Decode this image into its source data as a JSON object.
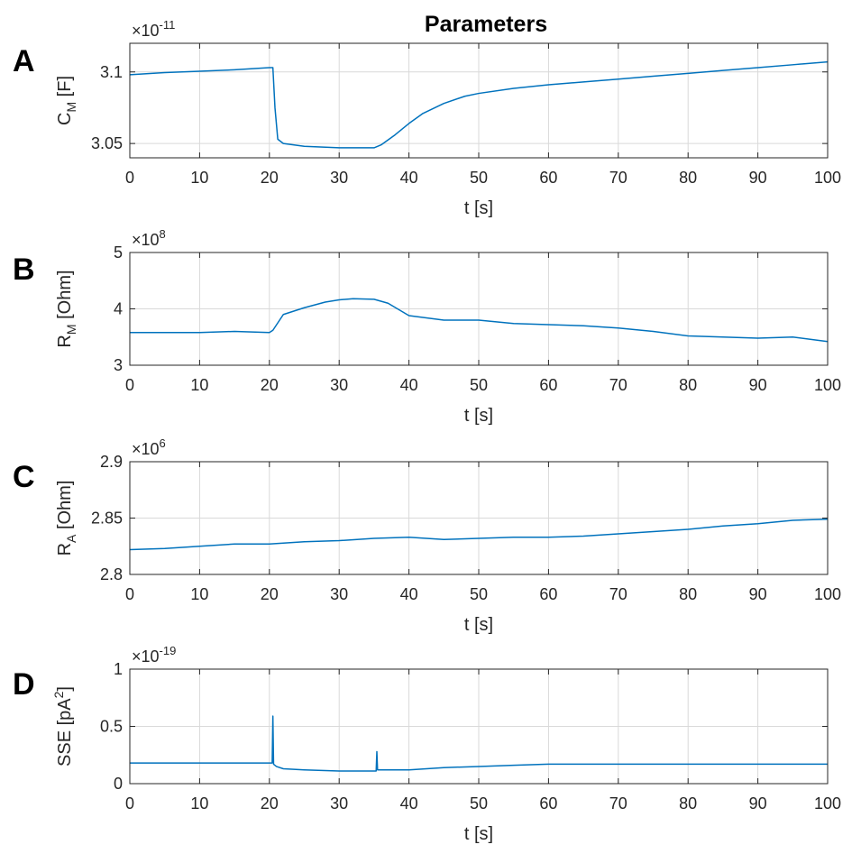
{
  "figure": {
    "title": "Parameters"
  },
  "colors": {
    "series": "#0072BD",
    "grid": "#d9d9d9",
    "axis": "#262626"
  },
  "chart_data": [
    {
      "panel": "A",
      "type": "line",
      "xlabel": "t [s]",
      "ylabel": "C",
      "ylabel_sub": "M",
      "ylabel_unit": " [F]",
      "exponent_base": "×10",
      "exponent": "-11",
      "xlim": [
        0,
        100
      ],
      "ylim": [
        3.04,
        3.12
      ],
      "xticks": [
        0,
        10,
        20,
        30,
        40,
        50,
        60,
        70,
        80,
        90,
        100
      ],
      "xtick_labels": [
        "0",
        "10",
        "20",
        "30",
        "40",
        "50",
        "60",
        "70",
        "80",
        "90",
        "100"
      ],
      "yticks": [
        3.05,
        3.1
      ],
      "ytick_labels": [
        "3.05",
        "3.1"
      ],
      "grid": true,
      "series": [
        {
          "x": [
            0,
            5,
            10,
            15,
            20,
            20.5,
            20.8,
            21.2,
            22,
            25,
            30,
            33,
            35,
            36,
            38,
            40,
            42,
            45,
            48,
            50,
            55,
            60,
            65,
            70,
            75,
            80,
            85,
            90,
            95,
            100
          ],
          "y": [
            3.098,
            3.0995,
            3.1005,
            3.1015,
            3.103,
            3.103,
            3.075,
            3.053,
            3.05,
            3.048,
            3.047,
            3.047,
            3.047,
            3.049,
            3.056,
            3.064,
            3.071,
            3.078,
            3.083,
            3.085,
            3.0885,
            3.091,
            3.093,
            3.095,
            3.097,
            3.099,
            3.101,
            3.103,
            3.105,
            3.107
          ]
        }
      ]
    },
    {
      "panel": "B",
      "type": "line",
      "xlabel": "t [s]",
      "ylabel": "R",
      "ylabel_sub": "M",
      "ylabel_unit": " [Ohm]",
      "exponent_base": "×10",
      "exponent": "8",
      "xlim": [
        0,
        100
      ],
      "ylim": [
        3,
        5
      ],
      "xticks": [
        0,
        10,
        20,
        30,
        40,
        50,
        60,
        70,
        80,
        90,
        100
      ],
      "xtick_labels": [
        "0",
        "10",
        "20",
        "30",
        "40",
        "50",
        "60",
        "70",
        "80",
        "90",
        "100"
      ],
      "yticks": [
        3,
        4,
        5
      ],
      "ytick_labels": [
        "3",
        "4",
        "5"
      ],
      "grid": true,
      "series": [
        {
          "x": [
            0,
            5,
            10,
            15,
            20,
            20.5,
            22,
            25,
            28,
            30,
            32,
            35,
            37,
            40,
            45,
            50,
            55,
            60,
            65,
            70,
            75,
            80,
            85,
            90,
            95,
            100
          ],
          "y": [
            3.58,
            3.58,
            3.58,
            3.6,
            3.58,
            3.62,
            3.9,
            4.02,
            4.12,
            4.16,
            4.18,
            4.17,
            4.1,
            3.88,
            3.8,
            3.8,
            3.74,
            3.72,
            3.7,
            3.66,
            3.6,
            3.52,
            3.5,
            3.48,
            3.5,
            3.42
          ]
        }
      ]
    },
    {
      "panel": "C",
      "type": "line",
      "xlabel": "t [s]",
      "ylabel": "R",
      "ylabel_sub": "A",
      "ylabel_unit": " [Ohm]",
      "exponent_base": "×10",
      "exponent": "6",
      "xlim": [
        0,
        100
      ],
      "ylim": [
        2.8,
        2.9
      ],
      "xticks": [
        0,
        10,
        20,
        30,
        40,
        50,
        60,
        70,
        80,
        90,
        100
      ],
      "xtick_labels": [
        "0",
        "10",
        "20",
        "30",
        "40",
        "50",
        "60",
        "70",
        "80",
        "90",
        "100"
      ],
      "yticks": [
        2.8,
        2.85,
        2.9
      ],
      "ytick_labels": [
        "2.8",
        "2.85",
        "2.9"
      ],
      "grid": true,
      "series": [
        {
          "x": [
            0,
            5,
            10,
            15,
            20,
            25,
            30,
            35,
            40,
            45,
            50,
            55,
            60,
            65,
            70,
            75,
            80,
            85,
            90,
            95,
            100
          ],
          "y": [
            2.822,
            2.823,
            2.825,
            2.827,
            2.827,
            2.829,
            2.83,
            2.832,
            2.833,
            2.831,
            2.832,
            2.833,
            2.833,
            2.834,
            2.836,
            2.838,
            2.84,
            2.843,
            2.845,
            2.848,
            2.849
          ]
        }
      ]
    },
    {
      "panel": "D",
      "type": "line",
      "xlabel": "t [s]",
      "ylabel": "SSE [pA",
      "ylabel_sup": "2",
      "ylabel_unit": "]",
      "exponent_base": "×10",
      "exponent": "-19",
      "xlim": [
        0,
        100
      ],
      "ylim": [
        0,
        1
      ],
      "xticks": [
        0,
        10,
        20,
        30,
        40,
        50,
        60,
        70,
        80,
        90,
        100
      ],
      "xtick_labels": [
        "0",
        "10",
        "20",
        "30",
        "40",
        "50",
        "60",
        "70",
        "80",
        "90",
        "100"
      ],
      "yticks": [
        0,
        0.5,
        1
      ],
      "ytick_labels": [
        "0",
        "0.5",
        "1"
      ],
      "grid": true,
      "series": [
        {
          "x": [
            0,
            5,
            10,
            15,
            20,
            20.4,
            20.5,
            20.6,
            21,
            22,
            25,
            30,
            33,
            35,
            35.3,
            35.4,
            35.5,
            36,
            40,
            45,
            50,
            55,
            60,
            70,
            80,
            90,
            100
          ],
          "y": [
            0.18,
            0.18,
            0.18,
            0.18,
            0.18,
            0.18,
            0.59,
            0.17,
            0.15,
            0.13,
            0.12,
            0.11,
            0.11,
            0.11,
            0.11,
            0.28,
            0.12,
            0.12,
            0.12,
            0.14,
            0.15,
            0.16,
            0.17,
            0.17,
            0.17,
            0.17,
            0.17
          ]
        }
      ]
    }
  ]
}
